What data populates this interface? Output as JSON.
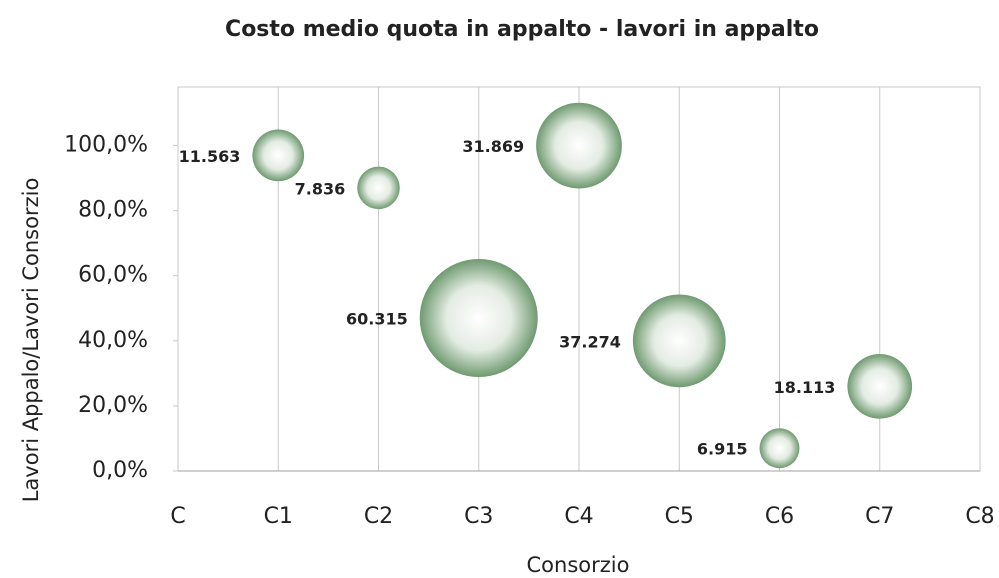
{
  "chart_data": {
    "type": "bubble",
    "title": "Costo medio quota in appalto - lavori in appalto",
    "x_label": "Consorzio",
    "y_label": "Lavori Appalo/Lavori Consorzio",
    "series": [
      {
        "name": "Consorzio",
        "color": "#6f9a70",
        "x": [
          1,
          2,
          3,
          4,
          5,
          6,
          7
        ],
        "values": [
          97,
          87,
          47,
          100,
          40,
          7,
          26
        ],
        "sizes": [
          11563,
          7836,
          60315,
          31869,
          37274,
          6915,
          18113
        ],
        "value_labels": [
          "11.563",
          "7.836",
          "60.315",
          "31.869",
          "37.274",
          "6.915",
          "18.113"
        ]
      }
    ],
    "xlim": [
      0,
      8
    ],
    "xticks": [
      {
        "value": 0,
        "label": "C"
      },
      {
        "value": 1,
        "label": "C1"
      },
      {
        "value": 2,
        "label": "C2"
      },
      {
        "value": 3,
        "label": "C3"
      },
      {
        "value": 4,
        "label": "C4"
      },
      {
        "value": 5,
        "label": "C5"
      },
      {
        "value": 6,
        "label": "C6"
      },
      {
        "value": 7,
        "label": "C7"
      },
      {
        "value": 8,
        "label": "C8"
      }
    ],
    "ylim": [
      0,
      118
    ],
    "yticks": [
      {
        "value": 0,
        "label": "0,0%"
      },
      {
        "value": 20,
        "label": "20,0%"
      },
      {
        "value": 40,
        "label": "40,0%"
      },
      {
        "value": 60,
        "label": "60,0%"
      },
      {
        "value": 80,
        "label": "80,0%"
      },
      {
        "value": 100,
        "label": "100,0%"
      }
    ],
    "grid": true
  }
}
